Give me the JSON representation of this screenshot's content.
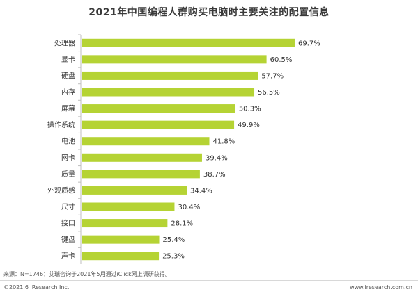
{
  "chart_data": {
    "type": "bar",
    "orientation": "horizontal",
    "title": "2021年中国编程人群购买电脑时主要关注的配置信息",
    "categories": [
      "处理器",
      "显卡",
      "硬盘",
      "内存",
      "屏幕",
      "操作系统",
      "电池",
      "网卡",
      "质量",
      "外观质感",
      "尺寸",
      "接口",
      "键盘",
      "声卡"
    ],
    "values": [
      69.7,
      60.5,
      57.7,
      56.5,
      50.3,
      49.9,
      41.8,
      39.4,
      38.7,
      34.4,
      30.4,
      28.1,
      25.4,
      25.3
    ],
    "value_labels": [
      "69.7%",
      "60.5%",
      "57.7%",
      "56.5%",
      "50.3%",
      "49.9%",
      "41.8%",
      "39.4%",
      "38.7%",
      "34.4%",
      "30.4%",
      "28.1%",
      "25.4%",
      "25.3%"
    ],
    "xlim": [
      0,
      100
    ],
    "grid": false,
    "legend": "none",
    "bar_color": "#b5d334"
  },
  "source_note": "来源：N=1746；艾瑞咨询于2021年5月通过iClick网上调研获得。",
  "footer": {
    "copyright": "©2021.6 iResearch Inc.",
    "website": "www.iresearch.com.cn"
  }
}
